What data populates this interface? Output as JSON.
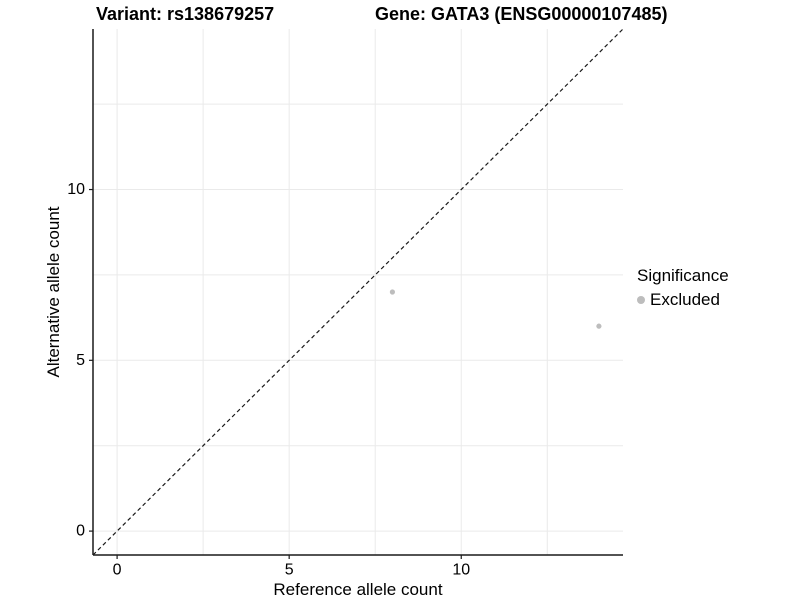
{
  "chart_data": {
    "type": "scatter",
    "title_left": "Variant: rs138679257",
    "title_right": "Gene: GATA3 (ENSG00000107485)",
    "xlabel": "Reference allele count",
    "ylabel": "Alternative allele count",
    "xlim": [
      -0.7,
      14.7
    ],
    "ylim": [
      -0.7,
      14.7
    ],
    "xticks": [
      0,
      5,
      10
    ],
    "yticks": [
      0,
      5,
      10
    ],
    "minor_gridlines_x": [
      2.5,
      7.5,
      12.5
    ],
    "minor_gridlines_y": [
      2.5,
      7.5,
      12.5
    ],
    "grid": "on",
    "legend_position": "right",
    "series": [
      {
        "name": "Excluded",
        "color": "#bdbdbd",
        "points": [
          {
            "x": 8,
            "y": 7
          },
          {
            "x": 14,
            "y": 6
          }
        ]
      }
    ],
    "reference_line": {
      "kind": "identity y=x",
      "from": [
        -0.7,
        -0.7
      ],
      "to": [
        14.7,
        14.7
      ],
      "style": "dashed",
      "color": "#1a1a1a"
    },
    "legend": {
      "title": "Significance",
      "items": [
        {
          "label": "Excluded",
          "color": "#bdbdbd"
        }
      ]
    }
  },
  "colors": {
    "background": "#ffffff",
    "grid": "#eaeaea",
    "axis": "#1a1a1a",
    "text": "#000000",
    "point": "#bdbdbd"
  }
}
